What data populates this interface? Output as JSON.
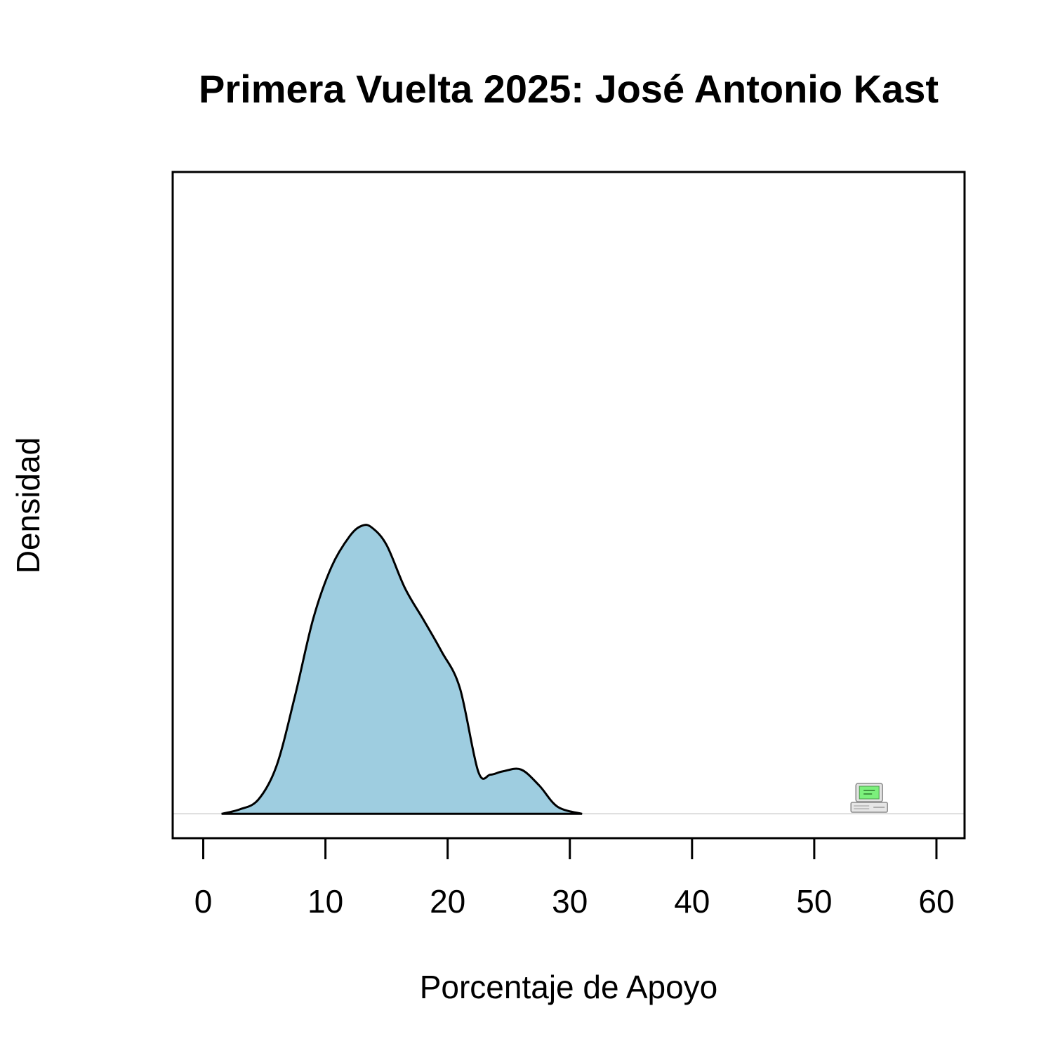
{
  "chart_data": {
    "type": "area",
    "title": "Primera Vuelta 2025: José Antonio Kast",
    "xlabel": "Porcentaje de Apoyo",
    "ylabel": "Densidad",
    "xlim": [
      -2.5,
      62.3
    ],
    "ylim": [
      -0.0038,
      0.1
    ],
    "xticks": [
      "0",
      "10",
      "20",
      "30",
      "40",
      "50",
      "60"
    ],
    "yticks_shown": false,
    "grid": false,
    "baseline": 0,
    "marker_icon": "computer-icon",
    "marker_x": 54.5,
    "series": [
      {
        "x": [
          1.5,
          3,
          4.5,
          6,
          7.5,
          9,
          10.5,
          12,
          13,
          13.8,
          15,
          16.5,
          18,
          19.5,
          21,
          22.5,
          23.5,
          24.5,
          26,
          27.5,
          29,
          31
        ],
        "y": [
          0,
          0.0007,
          0.0022,
          0.0075,
          0.0183,
          0.0304,
          0.0385,
          0.0433,
          0.0449,
          0.0446,
          0.0419,
          0.0352,
          0.0303,
          0.0253,
          0.0196,
          0.0066,
          0.0061,
          0.0066,
          0.0069,
          0.0044,
          0.0011,
          0
        ]
      }
    ],
    "colors": {
      "fill": "#9ecde0",
      "outline": "#000000",
      "baseline": "#d0d0d0",
      "frame": "#000000"
    }
  }
}
